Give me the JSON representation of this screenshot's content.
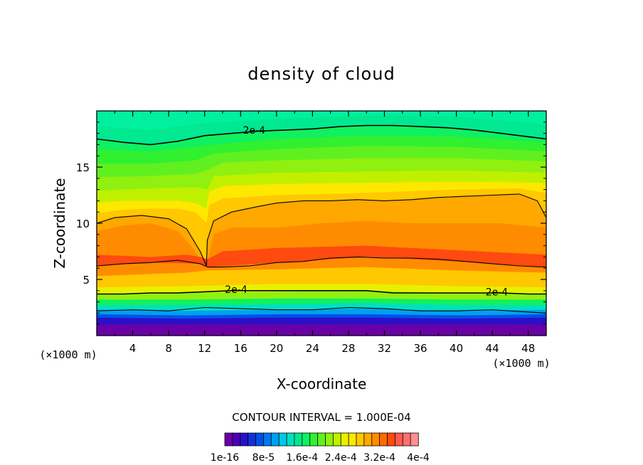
{
  "chart_data": {
    "type": "heatmap",
    "title": "density of cloud",
    "xlabel": "X-coordinate",
    "ylabel": "Z-coordinate",
    "x_unit_left": "(×1000 m)",
    "x_unit_right": "(×1000 m)",
    "xlim": [
      0,
      50
    ],
    "ylim": [
      0,
      20
    ],
    "x_ticks": [
      4,
      8,
      12,
      16,
      20,
      24,
      28,
      32,
      36,
      40,
      44,
      48
    ],
    "x_tick_labels": [
      "4",
      "8",
      "12",
      "16",
      "20",
      "24",
      "28",
      "32",
      "36",
      "40",
      "44",
      "48"
    ],
    "y_ticks": [
      5,
      10,
      15
    ],
    "y_tick_labels": [
      "5",
      "10",
      "15"
    ],
    "contour_interval_text": "CONTOUR INTERVAL = 1.000E-04",
    "colorbar": {
      "colors": [
        "#6a00a8",
        "#4b00b8",
        "#2a10c8",
        "#1030d8",
        "#0050e8",
        "#0078f0",
        "#00a0f0",
        "#00c8e8",
        "#00e0c0",
        "#00e890",
        "#10f060",
        "#30f030",
        "#60f020",
        "#90f010",
        "#c0f000",
        "#e8f000",
        "#ffe800",
        "#ffc800",
        "#ffa800",
        "#ff8c00",
        "#ff6a00",
        "#ff4a10",
        "#ff5a50",
        "#ff7070",
        "#ff9090"
      ],
      "labels": [
        "1e-16",
        "8e-5",
        "1.6e-4",
        "2.4e-4",
        "3.2e-4",
        "4e-4"
      ]
    },
    "contour_labels": [
      {
        "text": "2e-4",
        "x": 17.5,
        "z": 18.3
      },
      {
        "text": "2e-4",
        "x": 15.5,
        "z": 4.1
      },
      {
        "text": "2e-4",
        "x": 44.5,
        "z": 3.9
      }
    ],
    "contour_lines": [
      {
        "level": "2e-4",
        "points": [
          [
            0,
            17.5
          ],
          [
            3,
            17.2
          ],
          [
            6,
            17.0
          ],
          [
            9,
            17.3
          ],
          [
            12,
            17.8
          ],
          [
            15,
            18.0
          ],
          [
            18,
            18.2
          ],
          [
            21,
            18.3
          ],
          [
            24,
            18.4
          ],
          [
            27,
            18.6
          ],
          [
            30,
            18.7
          ],
          [
            33,
            18.7
          ],
          [
            36,
            18.6
          ],
          [
            39,
            18.5
          ],
          [
            42,
            18.3
          ],
          [
            45,
            18.0
          ],
          [
            48,
            17.7
          ],
          [
            50,
            17.5
          ]
        ]
      },
      {
        "level": "upper",
        "points": [
          [
            0,
            10.0
          ],
          [
            2,
            10.5
          ],
          [
            5,
            10.7
          ],
          [
            8,
            10.4
          ],
          [
            10,
            9.5
          ],
          [
            11.5,
            7.5
          ],
          [
            12.2,
            6.2
          ],
          [
            12.3,
            8.5
          ],
          [
            13,
            10.2
          ],
          [
            15,
            11.0
          ],
          [
            18,
            11.5
          ],
          [
            20,
            11.8
          ],
          [
            23,
            12.0
          ],
          [
            26,
            12.0
          ],
          [
            29,
            12.1
          ],
          [
            32,
            12.0
          ],
          [
            35,
            12.1
          ],
          [
            38,
            12.3
          ],
          [
            41,
            12.4
          ],
          [
            44,
            12.5
          ],
          [
            47,
            12.6
          ],
          [
            49,
            12.0
          ],
          [
            50,
            10.5
          ]
        ]
      },
      {
        "level": "mid",
        "points": [
          [
            0,
            6.2
          ],
          [
            3,
            6.4
          ],
          [
            6,
            6.5
          ],
          [
            9,
            6.7
          ],
          [
            11.5,
            6.4
          ],
          [
            12.3,
            6.1
          ],
          [
            14,
            6.1
          ],
          [
            17,
            6.2
          ],
          [
            20,
            6.5
          ],
          [
            23,
            6.6
          ],
          [
            26,
            6.9
          ],
          [
            29,
            7.0
          ],
          [
            32,
            6.9
          ],
          [
            35,
            6.9
          ],
          [
            38,
            6.8
          ],
          [
            41,
            6.6
          ],
          [
            44,
            6.4
          ],
          [
            47,
            6.2
          ],
          [
            50,
            6.1
          ]
        ]
      },
      {
        "level": "2e-4",
        "points": [
          [
            0,
            3.7
          ],
          [
            3,
            3.7
          ],
          [
            6,
            3.8
          ],
          [
            9,
            3.8
          ],
          [
            12,
            3.9
          ],
          [
            15,
            4.0
          ],
          [
            18,
            4.0
          ],
          [
            21,
            4.0
          ],
          [
            24,
            4.0
          ],
          [
            27,
            4.0
          ],
          [
            30,
            4.0
          ],
          [
            33,
            3.8
          ],
          [
            36,
            3.8
          ],
          [
            39,
            3.8
          ],
          [
            42,
            3.8
          ],
          [
            45,
            3.8
          ],
          [
            48,
            3.7
          ],
          [
            50,
            3.7
          ]
        ]
      },
      {
        "level": "low",
        "points": [
          [
            0,
            2.2
          ],
          [
            4,
            2.3
          ],
          [
            8,
            2.2
          ],
          [
            12,
            2.5
          ],
          [
            16,
            2.4
          ],
          [
            20,
            2.3
          ],
          [
            24,
            2.3
          ],
          [
            28,
            2.5
          ],
          [
            32,
            2.4
          ],
          [
            36,
            2.2
          ],
          [
            40,
            2.2
          ],
          [
            44,
            2.3
          ],
          [
            48,
            2.1
          ],
          [
            50,
            2.0
          ]
        ]
      }
    ],
    "field_bands": [
      {
        "level": 0,
        "color": "#6a00a8",
        "points": [
          [
            0,
            1.0
          ],
          [
            50,
            1.0
          ]
        ]
      },
      {
        "level": 1,
        "color": "#2a10c8",
        "points": [
          [
            0,
            1.6
          ],
          [
            10,
            1.5
          ],
          [
            20,
            1.6
          ],
          [
            30,
            1.6
          ],
          [
            40,
            1.5
          ],
          [
            50,
            1.6
          ]
        ]
      },
      {
        "level": 2,
        "color": "#0050e8",
        "points": [
          [
            0,
            1.9
          ],
          [
            10,
            1.8
          ],
          [
            20,
            1.9
          ],
          [
            30,
            1.9
          ],
          [
            40,
            1.8
          ],
          [
            50,
            1.9
          ]
        ]
      },
      {
        "level": 3,
        "color": "#00a0f0",
        "points": [
          [
            0,
            2.3
          ],
          [
            10,
            2.2
          ],
          [
            20,
            2.3
          ],
          [
            30,
            2.4
          ],
          [
            40,
            2.2
          ],
          [
            50,
            2.3
          ]
        ]
      },
      {
        "level": 4,
        "color": "#00e0c0",
        "points": [
          [
            0,
            2.7
          ],
          [
            10,
            2.7
          ],
          [
            20,
            2.8
          ],
          [
            30,
            2.9
          ],
          [
            40,
            2.7
          ],
          [
            50,
            2.7
          ]
        ]
      },
      {
        "level": 5,
        "color": "#10f060",
        "points": [
          [
            0,
            3.2
          ],
          [
            10,
            3.2
          ],
          [
            20,
            3.3
          ],
          [
            30,
            3.3
          ],
          [
            40,
            3.2
          ],
          [
            50,
            3.2
          ]
        ]
      },
      {
        "level": 6,
        "color": "#90f010",
        "points": [
          [
            0,
            3.7
          ],
          [
            10,
            3.8
          ],
          [
            20,
            3.9
          ],
          [
            30,
            4.0
          ],
          [
            40,
            3.8
          ],
          [
            50,
            3.7
          ]
        ]
      },
      {
        "level": 7,
        "color": "#e8f000",
        "points": [
          [
            0,
            4.3
          ],
          [
            10,
            4.4
          ],
          [
            20,
            4.6
          ],
          [
            30,
            4.6
          ],
          [
            40,
            4.4
          ],
          [
            50,
            4.3
          ]
        ]
      },
      {
        "level": 8,
        "color": "#ffc800",
        "points": [
          [
            0,
            5.3
          ],
          [
            10,
            5.6
          ],
          [
            12.3,
            5.8
          ],
          [
            20,
            5.9
          ],
          [
            30,
            6.1
          ],
          [
            40,
            5.8
          ],
          [
            50,
            5.6
          ]
        ]
      },
      {
        "level": 9,
        "color": "#ff8c00",
        "points": [
          [
            0,
            6.2
          ],
          [
            6,
            6.5
          ],
          [
            11.5,
            6.4
          ],
          [
            12.3,
            6.1
          ],
          [
            20,
            6.5
          ],
          [
            30,
            7.0
          ],
          [
            40,
            6.6
          ],
          [
            50,
            6.1
          ]
        ]
      },
      {
        "level": 10,
        "color": "#ff4a10",
        "points": [
          [
            0,
            7.2
          ],
          [
            6,
            7.0
          ],
          [
            10,
            7.2
          ],
          [
            11.5,
            7.0
          ],
          [
            12.3,
            6.8
          ],
          [
            14,
            7.5
          ],
          [
            20,
            7.8
          ],
          [
            30,
            8.0
          ],
          [
            40,
            7.6
          ],
          [
            50,
            7.2
          ]
        ]
      },
      {
        "level": 11,
        "color": "#ff8c00",
        "points": [
          [
            0,
            9.3
          ],
          [
            3,
            9.8
          ],
          [
            6,
            10.0
          ],
          [
            9,
            9.3
          ],
          [
            10.5,
            8.0
          ],
          [
            11.5,
            6.8
          ],
          [
            12.3,
            6.5
          ],
          [
            13,
            9.0
          ],
          [
            15,
            9.6
          ],
          [
            20,
            9.6
          ],
          [
            25,
            10.0
          ],
          [
            30,
            10.2
          ],
          [
            35,
            10.0
          ],
          [
            40,
            10.0
          ],
          [
            45,
            10.0
          ],
          [
            50,
            9.6
          ]
        ]
      },
      {
        "level": 12,
        "color": "#ffa800",
        "points": [
          [
            0,
            10.0
          ],
          [
            2,
            10.5
          ],
          [
            5,
            10.7
          ],
          [
            8,
            10.4
          ],
          [
            10,
            9.5
          ],
          [
            11.5,
            7.5
          ],
          [
            12.2,
            6.2
          ],
          [
            12.3,
            8.5
          ],
          [
            13,
            10.2
          ],
          [
            15,
            11.0
          ],
          [
            18,
            11.5
          ],
          [
            20,
            11.8
          ],
          [
            23,
            12.0
          ],
          [
            26,
            12.0
          ],
          [
            29,
            12.1
          ],
          [
            32,
            12.0
          ],
          [
            35,
            12.1
          ],
          [
            38,
            12.3
          ],
          [
            41,
            12.4
          ],
          [
            44,
            12.5
          ],
          [
            47,
            12.6
          ],
          [
            49,
            12.0
          ],
          [
            50,
            10.5
          ]
        ]
      },
      {
        "level": 13,
        "color": "#ffc800",
        "points": [
          [
            0,
            10.9
          ],
          [
            3,
            11.2
          ],
          [
            6,
            11.3
          ],
          [
            9,
            11.3
          ],
          [
            11,
            11.0
          ],
          [
            12.2,
            10.0
          ],
          [
            12.5,
            11.6
          ],
          [
            14,
            12.2
          ],
          [
            20,
            12.5
          ],
          [
            30,
            12.7
          ],
          [
            40,
            13.0
          ],
          [
            47,
            13.1
          ],
          [
            50,
            12.7
          ]
        ]
      },
      {
        "level": 14,
        "color": "#ffe800",
        "points": [
          [
            0,
            11.8
          ],
          [
            3,
            12.0
          ],
          [
            6,
            12.0
          ],
          [
            9,
            12.0
          ],
          [
            11,
            11.8
          ],
          [
            12.2,
            11.3
          ],
          [
            12.5,
            12.8
          ],
          [
            14,
            13.3
          ],
          [
            20,
            13.5
          ],
          [
            30,
            13.6
          ],
          [
            40,
            13.7
          ],
          [
            50,
            13.6
          ]
        ]
      },
      {
        "level": 15,
        "color": "#c0f000",
        "points": [
          [
            0,
            12.9
          ],
          [
            6,
            13.1
          ],
          [
            11,
            13.2
          ],
          [
            12.3,
            13.0
          ],
          [
            13,
            14.2
          ],
          [
            20,
            14.5
          ],
          [
            30,
            14.6
          ],
          [
            40,
            14.7
          ],
          [
            50,
            14.5
          ]
        ]
      },
      {
        "level": 16,
        "color": "#90f010",
        "points": [
          [
            0,
            14.1
          ],
          [
            6,
            14.2
          ],
          [
            11,
            14.4
          ],
          [
            12.5,
            14.8
          ],
          [
            14,
            15.4
          ],
          [
            20,
            15.6
          ],
          [
            30,
            15.8
          ],
          [
            40,
            15.8
          ],
          [
            50,
            15.5
          ]
        ]
      },
      {
        "level": 17,
        "color": "#60f020",
        "points": [
          [
            0,
            15.3
          ],
          [
            6,
            15.3
          ],
          [
            11,
            15.6
          ],
          [
            13,
            16.2
          ],
          [
            20,
            16.6
          ],
          [
            30,
            16.9
          ],
          [
            40,
            16.8
          ],
          [
            50,
            16.4
          ]
        ]
      },
      {
        "level": 18,
        "color": "#30f030",
        "points": [
          [
            0,
            16.6
          ],
          [
            6,
            16.4
          ],
          [
            12,
            16.9
          ],
          [
            20,
            17.5
          ],
          [
            30,
            17.8
          ],
          [
            40,
            17.7
          ],
          [
            50,
            17.2
          ]
        ]
      },
      {
        "level": 19,
        "color": "#10f060",
        "points": [
          [
            0,
            17.5
          ],
          [
            6,
            17.0
          ],
          [
            12,
            17.8
          ],
          [
            20,
            18.3
          ],
          [
            30,
            18.7
          ],
          [
            40,
            18.5
          ],
          [
            50,
            17.5
          ]
        ]
      },
      {
        "level": 20,
        "color": "#00e890",
        "points": [
          [
            0,
            18.6
          ],
          [
            6,
            18.3
          ],
          [
            12,
            18.9
          ],
          [
            20,
            19.3
          ],
          [
            30,
            19.6
          ],
          [
            40,
            19.5
          ],
          [
            50,
            18.8
          ]
        ]
      }
    ]
  }
}
